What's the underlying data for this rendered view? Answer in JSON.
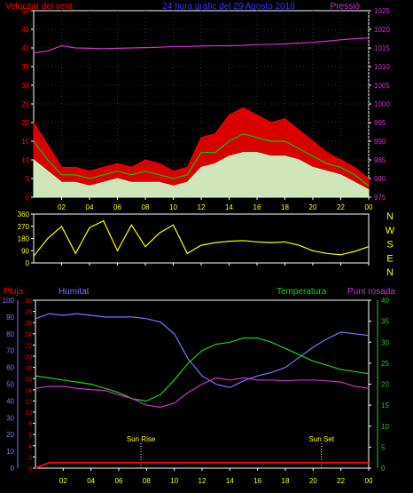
{
  "header": {
    "left_title": "Velocitat del vent",
    "center_title": "24 hora gràfic del  29 Agosto 2018",
    "right_title": "Pressió"
  },
  "colors": {
    "wind": "#ff0000",
    "gust": "#ffffff",
    "avg": "#00cc00",
    "light": "#ccffcc",
    "pressure": "#cc33cc",
    "direction": "#ffff00",
    "humidity": "#7777ff",
    "temperature": "#22cc22",
    "dew": "#cc33cc",
    "rain": "#ff0000",
    "title_left": "#ff0000",
    "title_center": "#3333ff",
    "title_right": "#cc33cc"
  },
  "x_tick_labels": [
    "02",
    "04",
    "06",
    "08",
    "10",
    "12",
    "14",
    "16",
    "18",
    "20",
    "22",
    "00"
  ],
  "chart_data": [
    {
      "type": "line",
      "name_key": "wind_pressure",
      "title": "Velocitat del vent",
      "ylabel_left": "Velocitat del vent",
      "ylabel_right": "Pressió",
      "ylim_left": [
        0,
        50
      ],
      "yticks_left": [
        0,
        5,
        10,
        15,
        20,
        25,
        30,
        35,
        40,
        45,
        50
      ],
      "ylim_right": [
        975,
        1025
      ],
      "yticks_right": [
        975,
        980,
        985,
        990,
        995,
        1000,
        1005,
        1010,
        1015,
        1020,
        1025
      ],
      "x": [
        0,
        1,
        2,
        3,
        4,
        5,
        6,
        7,
        8,
        9,
        10,
        11,
        12,
        13,
        14,
        15,
        16,
        17,
        18,
        19,
        20,
        21,
        22,
        23,
        24
      ],
      "series": [
        {
          "role": "gust",
          "color": "#ff0000",
          "values": [
            20,
            14,
            8,
            8,
            7,
            8,
            9,
            8,
            10,
            9,
            7,
            8,
            16,
            17,
            22,
            24,
            22,
            20,
            21,
            18,
            15,
            12,
            10,
            8,
            5
          ]
        },
        {
          "role": "average",
          "color": "#00cc00",
          "values": [
            15,
            10,
            6,
            6,
            5,
            6,
            7,
            6,
            7,
            6,
            5,
            6,
            12,
            12,
            15,
            17,
            16,
            15,
            15,
            13,
            11,
            9,
            8,
            6,
            3
          ]
        },
        {
          "role": "speed",
          "color": "#ccffcc",
          "values": [
            10,
            7,
            4,
            4,
            3,
            4,
            5,
            4,
            4,
            4,
            3,
            4,
            8,
            9,
            11,
            12,
            12,
            11,
            11,
            10,
            8,
            7,
            6,
            4,
            2
          ]
        },
        {
          "role": "pressure",
          "axis": "right",
          "color": "#cc33cc",
          "values": [
            1013.7,
            1014.2,
            1015.6,
            1015.0,
            1014.9,
            1014.8,
            1014.9,
            1015.0,
            1015.1,
            1015.2,
            1015.4,
            1015.4,
            1015.5,
            1015.6,
            1015.6,
            1015.7,
            1015.9,
            1016.0,
            1016.1,
            1016.3,
            1016.5,
            1016.8,
            1017.2,
            1017.5,
            1017.7
          ]
        }
      ]
    },
    {
      "type": "line",
      "name_key": "wind_direction",
      "ylim": [
        0,
        360
      ],
      "yticks": [
        0,
        90,
        180,
        270,
        360
      ],
      "right_labels": [
        "N",
        "W",
        "S",
        "E",
        "N"
      ],
      "x": [
        0,
        1,
        2,
        3,
        4,
        5,
        6,
        7,
        8,
        9,
        10,
        11,
        12,
        13,
        14,
        15,
        16,
        17,
        18,
        19,
        20,
        21,
        22,
        23,
        24
      ],
      "values": [
        50,
        180,
        270,
        70,
        260,
        310,
        90,
        280,
        120,
        220,
        280,
        70,
        130,
        150,
        160,
        165,
        155,
        150,
        155,
        130,
        90,
        70,
        60,
        85,
        120
      ]
    },
    {
      "type": "line",
      "name_key": "weather",
      "labels": {
        "rain": "Pluja",
        "humidity": "Humitat",
        "temperature": "Temperatura",
        "dew": "Punt rosada",
        "sunrise": "Sun Rise",
        "sunset": "Sun Set"
      },
      "ylim_humidity": [
        0,
        100
      ],
      "yticks_humidity": [
        0,
        10,
        20,
        30,
        40,
        50,
        60,
        70,
        80,
        90,
        100
      ],
      "ylim_rain": [
        0,
        30
      ],
      "yticks_rain": [
        0,
        2,
        4,
        6,
        8,
        10,
        12,
        14,
        16,
        18,
        20,
        22,
        24,
        26,
        28,
        30
      ],
      "ylim_temp": [
        0,
        40
      ],
      "yticks_temp": [
        0,
        5,
        10,
        15,
        20,
        25,
        30,
        35,
        40
      ],
      "sunrise_hour": 7.6,
      "sunset_hour": 20.6,
      "x": [
        0,
        1,
        2,
        3,
        4,
        5,
        6,
        7,
        8,
        9,
        10,
        11,
        12,
        13,
        14,
        15,
        16,
        17,
        18,
        19,
        20,
        21,
        22,
        23,
        24
      ],
      "series": [
        {
          "role": "humidity",
          "color": "#7777ff",
          "values": [
            89,
            92,
            91,
            92,
            91,
            90,
            90,
            90,
            89,
            87,
            80,
            65,
            55,
            50,
            48,
            52,
            55,
            57,
            60,
            66,
            72,
            77,
            81,
            80,
            79
          ]
        },
        {
          "role": "temperature",
          "color": "#22cc22",
          "values": [
            22,
            21.5,
            21,
            20.5,
            20,
            19,
            18,
            16.5,
            16,
            17.5,
            21,
            25,
            28,
            29.5,
            30,
            31,
            31,
            30,
            28.5,
            27,
            25.5,
            24.5,
            23.5,
            23,
            22.5
          ]
        },
        {
          "role": "dew",
          "color": "#cc33cc",
          "values": [
            19,
            19.5,
            19.5,
            19,
            18.7,
            18.5,
            17.5,
            16.5,
            15,
            14.5,
            15.5,
            18,
            20,
            21.5,
            21,
            21.5,
            21,
            21,
            20.8,
            21,
            21,
            20.8,
            20.5,
            19.5,
            19
          ]
        },
        {
          "role": "rain",
          "color": "#ff0000",
          "values": [
            0,
            1,
            1,
            1,
            1,
            1,
            1,
            1,
            1,
            1,
            1,
            1,
            1,
            1,
            1,
            1,
            1,
            1,
            1,
            1,
            1,
            1,
            1,
            1,
            1
          ]
        }
      ]
    }
  ]
}
